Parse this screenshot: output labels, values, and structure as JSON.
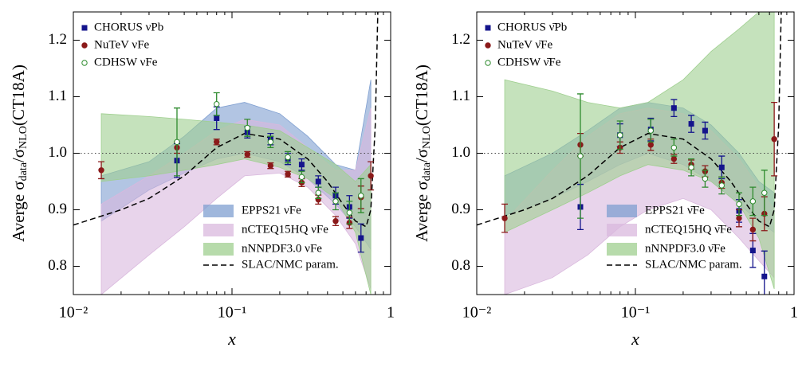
{
  "chart_data": [
    {
      "type": "errorbar",
      "xscale": "log",
      "xlabel": "x",
      "ylabel": [
        "Averge σ",
        "data",
        "/σ",
        "NLO",
        "(CT18A)"
      ],
      "xlim": [
        0.01,
        1
      ],
      "xticks": [
        {
          "value": 0.01,
          "label": "10⁻²"
        },
        {
          "value": 0.1,
          "label": "10⁻¹"
        },
        1
      ],
      "ylim": [
        0.75,
        1.25
      ],
      "yticks": [
        0.8,
        0.9,
        {
          "value": 1,
          "label": "1.0"
        },
        1.1,
        1.2
      ],
      "reference": 1,
      "legend": "upper left",
      "band_legend": "lower right",
      "series": [
        {
          "name": "CHORUS νPb",
          "color": "#14148c",
          "marker": "square",
          "x": [
            0.045,
            0.08,
            0.125,
            0.175,
            0.225,
            0.275,
            0.35,
            0.45,
            0.55,
            0.65
          ],
          "values": [
            0.987,
            1.062,
            1.037,
            1.025,
            0.99,
            0.98,
            0.95,
            0.925,
            0.905,
            0.85
          ],
          "errors": [
            0.03,
            0.02,
            0.01,
            0.01,
            0.01,
            0.01,
            0.01,
            0.015,
            0.02,
            0.025
          ]
        },
        {
          "name": "NuTeV νFe",
          "color": "#8b1a1a",
          "marker": "circle",
          "x": [
            0.015,
            0.045,
            0.08,
            0.125,
            0.175,
            0.225,
            0.275,
            0.35,
            0.45,
            0.55,
            0.65,
            0.75
          ],
          "values": [
            0.97,
            1.01,
            1.02,
            0.998,
            0.978,
            0.963,
            0.948,
            0.918,
            0.88,
            0.877,
            0.922,
            0.96
          ],
          "errors": [
            0.015,
            0.01,
            0.005,
            0.005,
            0.005,
            0.005,
            0.007,
            0.008,
            0.008,
            0.01,
            0.02,
            0.025
          ]
        },
        {
          "name": "CDHSW νFe",
          "color": "#2e8b2e",
          "marker": "open-circle",
          "x": [
            0.045,
            0.08,
            0.125,
            0.175,
            0.225,
            0.275,
            0.35,
            0.45,
            0.55,
            0.65
          ],
          "values": [
            1.02,
            1.087,
            1.045,
            1.02,
            0.993,
            0.958,
            0.93,
            0.915,
            0.895,
            0.925
          ],
          "errors": [
            0.06,
            0.02,
            0.015,
            0.01,
            0.01,
            0.01,
            0.01,
            0.015,
            0.02,
            0.03
          ]
        }
      ],
      "bands": [
        {
          "name": "EPPS21 νFe",
          "color": "#7f9fd0",
          "x": [
            0.015,
            0.03,
            0.05,
            0.08,
            0.12,
            0.2,
            0.3,
            0.45,
            0.6,
            0.75
          ],
          "lower": [
            0.88,
            0.935,
            0.965,
            0.99,
            1.0,
            0.985,
            0.955,
            0.91,
            0.87,
            0.83
          ],
          "upper": [
            0.96,
            0.985,
            1.03,
            1.08,
            1.09,
            1.07,
            1.03,
            0.98,
            0.97,
            1.13
          ]
        },
        {
          "name": "nCTEQ15HQ νFe",
          "color": "#d9b8dd",
          "x": [
            0.015,
            0.03,
            0.05,
            0.08,
            0.12,
            0.2,
            0.3,
            0.45,
            0.6,
            0.75
          ],
          "lower": [
            0.75,
            0.82,
            0.87,
            0.92,
            0.96,
            0.965,
            0.94,
            0.89,
            0.84,
            0.76
          ],
          "upper": [
            0.91,
            0.96,
            1.0,
            1.04,
            1.06,
            1.05,
            1.01,
            0.97,
            0.97,
            1.08
          ]
        },
        {
          "name": "nNNPDF3.0 νFe",
          "color": "#9fcf8f",
          "x": [
            0.015,
            0.03,
            0.05,
            0.08,
            0.12,
            0.2,
            0.3,
            0.45,
            0.6,
            0.75
          ],
          "lower": [
            0.95,
            0.96,
            0.97,
            0.98,
            0.99,
            0.975,
            0.955,
            0.92,
            0.86,
            0.75
          ],
          "upper": [
            1.07,
            1.065,
            1.06,
            1.055,
            1.05,
            1.04,
            1.01,
            0.98,
            0.95,
            0.98
          ]
        }
      ],
      "lines": [
        {
          "name": "SLAC/NMC param.",
          "color": "#000000",
          "dashed": true,
          "x": [
            0.01,
            0.02,
            0.03,
            0.05,
            0.08,
            0.12,
            0.2,
            0.3,
            0.4,
            0.5,
            0.6,
            0.7,
            0.75,
            0.8,
            0.83
          ],
          "values": [
            0.873,
            0.9,
            0.92,
            0.96,
            1.01,
            1.035,
            1.025,
            0.99,
            0.95,
            0.91,
            0.88,
            0.87,
            0.9,
            1.05,
            1.25
          ]
        }
      ]
    },
    {
      "type": "errorbar",
      "xscale": "log",
      "xlabel": "x",
      "ylabel": [
        "Averge σ",
        "data",
        "/σ",
        "NLO",
        "(CT18A)"
      ],
      "xlim": [
        0.01,
        1
      ],
      "xticks": [
        {
          "value": 0.01,
          "label": "10⁻²"
        },
        {
          "value": 0.1,
          "label": "10⁻¹"
        },
        1
      ],
      "ylim": [
        0.75,
        1.25
      ],
      "yticks": [
        0.8,
        0.9,
        {
          "value": 1,
          "label": "1.0"
        },
        1.1,
        1.2
      ],
      "reference": 1,
      "legend": "upper left",
      "band_legend": "lower right",
      "series": [
        {
          "name": "CHORUS ν̄Pb",
          "color": "#14148c",
          "marker": "square",
          "x": [
            0.045,
            0.08,
            0.125,
            0.175,
            0.225,
            0.275,
            0.35,
            0.45,
            0.55,
            0.65
          ],
          "values": [
            0.905,
            1.032,
            1.042,
            1.08,
            1.052,
            1.04,
            0.975,
            0.898,
            0.828,
            0.782
          ],
          "errors": [
            0.04,
            0.02,
            0.02,
            0.015,
            0.015,
            0.015,
            0.02,
            0.02,
            0.03,
            0.045
          ]
        },
        {
          "name": "NuTeV ν̄Fe",
          "color": "#8b1a1a",
          "marker": "circle",
          "x": [
            0.015,
            0.045,
            0.08,
            0.125,
            0.175,
            0.225,
            0.275,
            0.35,
            0.45,
            0.55,
            0.65,
            0.75
          ],
          "values": [
            0.885,
            1.015,
            1.01,
            1.015,
            0.99,
            0.98,
            0.968,
            0.948,
            0.885,
            0.865,
            0.893,
            1.025
          ],
          "errors": [
            0.025,
            0.02,
            0.01,
            0.01,
            0.008,
            0.008,
            0.01,
            0.01,
            0.015,
            0.02,
            0.03,
            0.065
          ]
        },
        {
          "name": "CDHSW ν̄Fe",
          "color": "#2e8b2e",
          "marker": "open-circle",
          "x": [
            0.045,
            0.08,
            0.125,
            0.175,
            0.225,
            0.275,
            0.35,
            0.45,
            0.55,
            0.65
          ],
          "values": [
            0.995,
            1.032,
            1.04,
            1.01,
            0.975,
            0.955,
            0.943,
            0.91,
            0.915,
            0.93
          ],
          "errors": [
            0.11,
            0.025,
            0.02,
            0.015,
            0.015,
            0.015,
            0.015,
            0.02,
            0.025,
            0.04
          ]
        }
      ],
      "bands": [
        {
          "name": "EPPS21 ν̄Fe",
          "color": "#7f9fd0",
          "x": [
            0.015,
            0.03,
            0.05,
            0.08,
            0.12,
            0.2,
            0.3,
            0.45,
            0.6,
            0.75
          ],
          "lower": [
            0.89,
            0.92,
            0.95,
            0.98,
            1.0,
            0.98,
            0.95,
            0.91,
            0.88,
            0.86
          ],
          "upper": [
            0.96,
            1.0,
            1.04,
            1.08,
            1.09,
            1.08,
            1.05,
            1.0,
            0.95,
            0.93
          ]
        },
        {
          "name": "nCTEQ15HQ ν̄Fe",
          "color": "#d9b8dd",
          "x": [
            0.015,
            0.03,
            0.05,
            0.08,
            0.12,
            0.2,
            0.3,
            0.45,
            0.6,
            0.75
          ],
          "lower": [
            0.75,
            0.78,
            0.82,
            0.87,
            0.9,
            0.92,
            0.9,
            0.85,
            0.81,
            0.78
          ],
          "upper": [
            0.88,
            0.97,
            1.03,
            1.07,
            1.08,
            1.07,
            1.04,
            0.99,
            0.94,
            0.9
          ]
        },
        {
          "name": "nNNPDF3.0 ν̄Fe",
          "color": "#9fcf8f",
          "x": [
            0.015,
            0.03,
            0.05,
            0.08,
            0.12,
            0.2,
            0.3,
            0.45,
            0.6,
            0.75
          ],
          "lower": [
            0.86,
            0.9,
            0.93,
            0.96,
            0.98,
            0.97,
            0.95,
            0.91,
            0.85,
            0.76
          ],
          "upper": [
            1.13,
            1.11,
            1.09,
            1.08,
            1.09,
            1.13,
            1.18,
            1.22,
            1.25,
            1.25
          ]
        }
      ],
      "lines": [
        {
          "name": "SLAC/NMC param.",
          "color": "#000000",
          "dashed": true,
          "x": [
            0.01,
            0.02,
            0.03,
            0.05,
            0.08,
            0.12,
            0.2,
            0.3,
            0.4,
            0.5,
            0.6,
            0.7,
            0.75,
            0.8,
            0.83
          ],
          "values": [
            0.873,
            0.9,
            0.92,
            0.96,
            1.01,
            1.035,
            1.025,
            0.99,
            0.95,
            0.91,
            0.88,
            0.87,
            0.9,
            1.05,
            1.25
          ]
        }
      ]
    }
  ]
}
